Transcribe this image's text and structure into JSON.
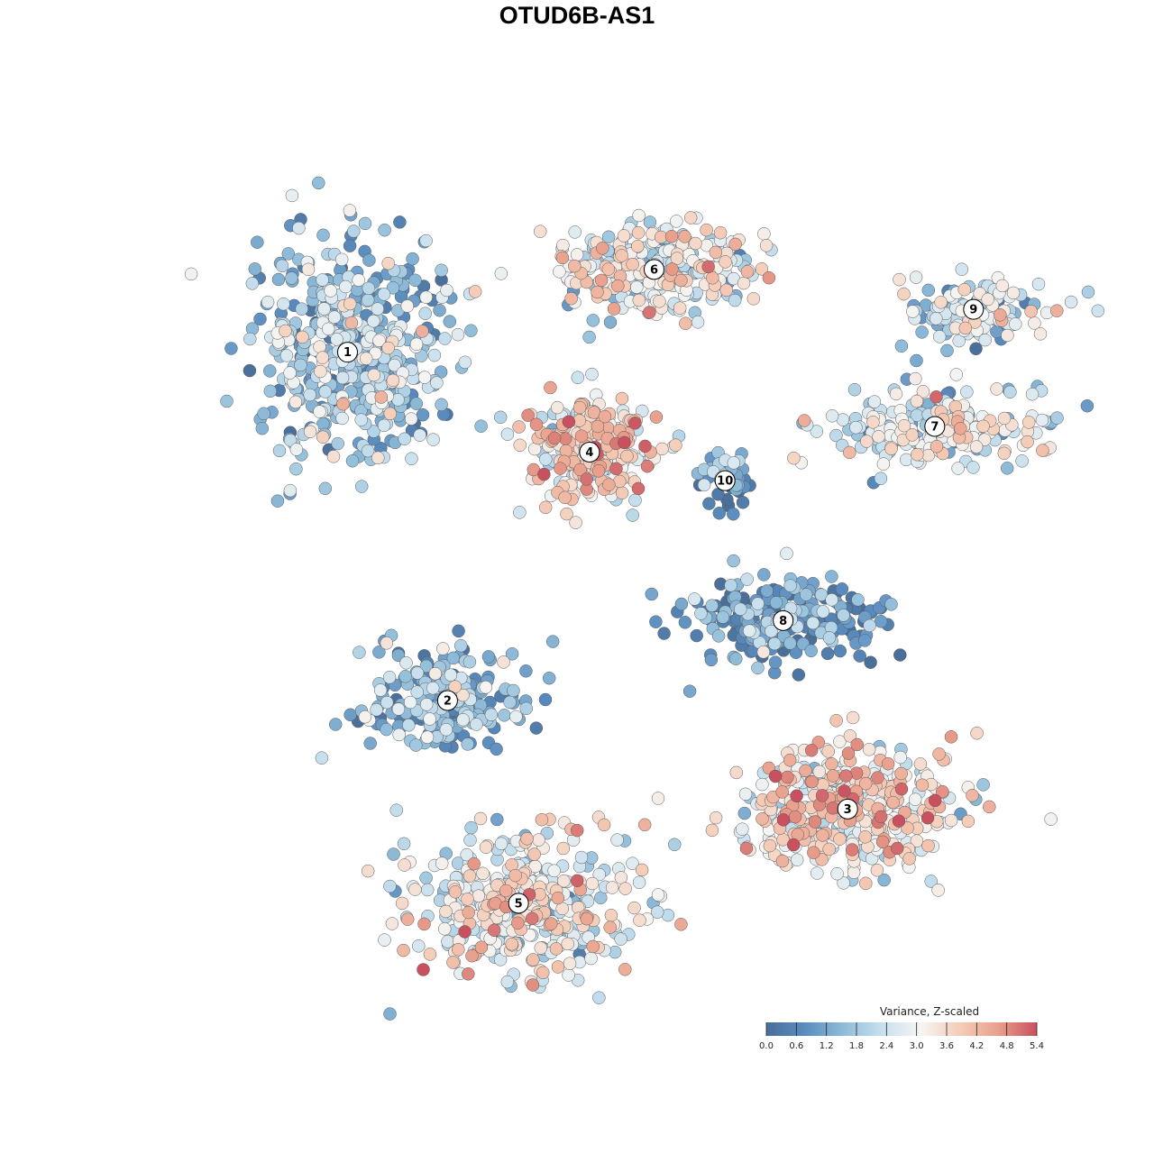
{
  "title": "OTUD6B-AS1",
  "chart_data": {
    "type": "scatter",
    "title": "OTUD6B-AS1",
    "xlabel": "",
    "ylabel": "",
    "grid": false,
    "colorbar": {
      "title": "Variance, Z-scaled",
      "min": 0.0,
      "max": 5.4,
      "ticks": [
        "0.0",
        "0.6",
        "1.2",
        "1.8",
        "2.4",
        "3.0",
        "3.6",
        "4.2",
        "4.8",
        "5.4"
      ],
      "colors": [
        "#4a6f9a",
        "#5a8cbf",
        "#8ebcd9",
        "#c8e0ee",
        "#f5f5f3",
        "#f5cdb8",
        "#e9a08c",
        "#c8505f"
      ],
      "placement": "bottom-right"
    },
    "clusters": [
      {
        "label": "1",
        "x": -7.2,
        "y": 8.4,
        "value": 1.7
      },
      {
        "label": "2",
        "x": -4.1,
        "y": -3.8,
        "value": 1.5
      },
      {
        "label": "3",
        "x": 8.3,
        "y": -7.6,
        "value": 3.3
      },
      {
        "label": "4",
        "x": 0.3,
        "y": 4.9,
        "value": 3.4
      },
      {
        "label": "5",
        "x": -1.9,
        "y": -10.9,
        "value": 2.9
      },
      {
        "label": "6",
        "x": 2.3,
        "y": 11.3,
        "value": 2.9
      },
      {
        "label": "7",
        "x": 11.0,
        "y": 5.8,
        "value": 2.6
      },
      {
        "label": "8",
        "x": 6.3,
        "y": -1.0,
        "value": 0.9
      },
      {
        "label": "9",
        "x": 12.2,
        "y": 9.9,
        "value": 2.2
      },
      {
        "label": "10",
        "x": 4.5,
        "y": 3.9,
        "value": 1.1
      }
    ],
    "xlim": [
      -13.5,
      15
    ],
    "ylim": [
      -14,
      16
    ]
  }
}
